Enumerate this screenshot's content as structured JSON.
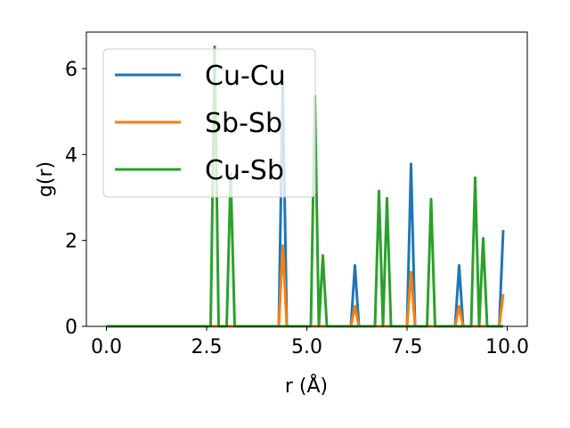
{
  "chart_data": {
    "type": "line",
    "xlabel": "r (Å)",
    "ylabel": "g(r)",
    "xlim": [
      -0.5,
      10.5
    ],
    "ylim": [
      0,
      6.85
    ],
    "xticks": [
      0.0,
      2.5,
      5.0,
      7.5,
      10.0
    ],
    "xtick_labels": [
      "0.0",
      "2.5",
      "5.0",
      "7.5",
      "10.0"
    ],
    "yticks": [
      0,
      2,
      4,
      6
    ],
    "ytick_labels": [
      "0",
      "2",
      "4",
      "6"
    ],
    "grid": false,
    "legend_position": "top-left",
    "series": [
      {
        "name": "Cu-Cu",
        "color": "#1f77b4",
        "x": [
          0.0,
          4.3,
          4.4,
          4.5,
          6.1,
          6.2,
          6.3,
          7.5,
          7.6,
          7.7,
          8.7,
          8.8,
          8.9,
          9.8,
          9.9
        ],
        "y": [
          0,
          0,
          5.62,
          0,
          0,
          1.42,
          0,
          0,
          3.78,
          0,
          0,
          1.42,
          0,
          0,
          2.24
        ]
      },
      {
        "name": "Sb-Sb",
        "color": "#ff7f0e",
        "x": [
          0.0,
          4.3,
          4.4,
          4.5,
          6.1,
          6.2,
          6.3,
          7.5,
          7.6,
          7.7,
          8.7,
          8.8,
          8.9,
          9.8,
          9.9
        ],
        "y": [
          0,
          0,
          1.88,
          0,
          0,
          0.47,
          0,
          0,
          1.26,
          0,
          0,
          0.47,
          0,
          0,
          0.75
        ]
      },
      {
        "name": "Cu-Sb",
        "color": "#2ca02c",
        "x": [
          0.0,
          2.6,
          2.7,
          2.8,
          3.0,
          3.1,
          3.2,
          5.1,
          5.2,
          5.3,
          5.4,
          5.5,
          6.7,
          6.8,
          6.9,
          7.0,
          7.1,
          8.0,
          8.1,
          8.2,
          9.1,
          9.2,
          9.3,
          9.4,
          9.5,
          9.9
        ],
        "y": [
          0,
          0,
          6.51,
          0,
          0,
          3.55,
          0,
          0,
          5.36,
          0,
          1.65,
          0,
          0,
          3.15,
          0,
          2.98,
          0,
          0,
          2.96,
          0,
          0,
          3.46,
          0,
          2.05,
          0,
          0
        ]
      }
    ]
  }
}
